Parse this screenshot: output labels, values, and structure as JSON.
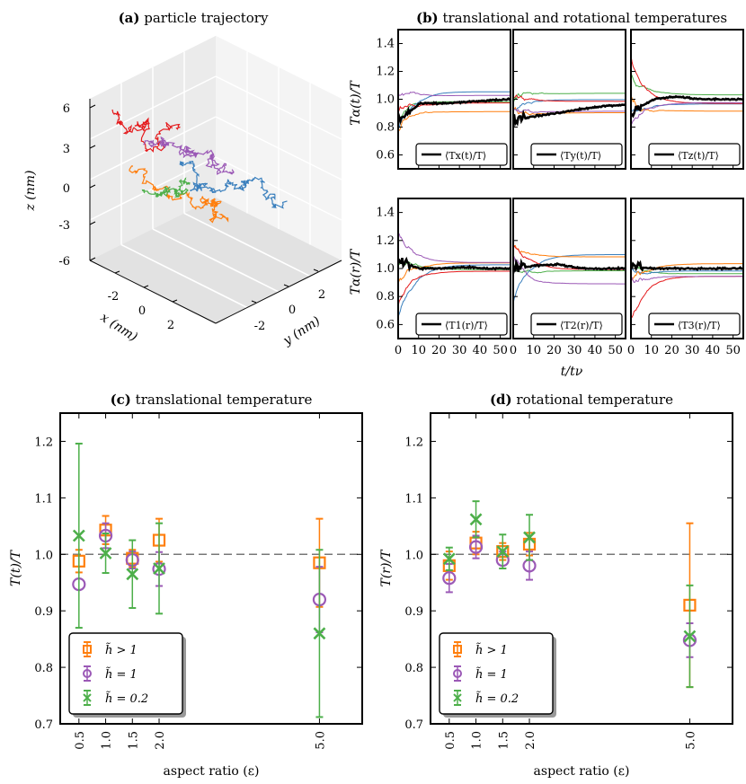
{
  "colors": {
    "orange": "#ff7f0e",
    "purple": "#9b59b6",
    "green": "#4daf4a",
    "blue": "#3a7fbd",
    "red": "#e41a1c",
    "black": "#000000",
    "dash": "#777777"
  },
  "panel_a": {
    "title_bold": "(a)",
    "title": "particle trajectory",
    "zlabel": "z (nm)",
    "xlabel": "x (nm)",
    "ylabel": "y (nm)",
    "z_ticks": [
      "6",
      "3",
      "0",
      "-3",
      "-6"
    ],
    "x_ticks": [
      "-2",
      "0",
      "2"
    ],
    "y_ticks": [
      "-2",
      "0",
      "2"
    ]
  },
  "panel_b": {
    "title_bold": "(b)",
    "title": "translational and rotational temperatures",
    "ylabel_top": "Tα(t)/T",
    "ylabel_bottom": "Tα(r)/T",
    "y_ticks": [
      "0.6",
      "0.8",
      "1.0",
      "1.2",
      "1.4"
    ],
    "x_ticks": [
      "0",
      "10",
      "20",
      "30",
      "40",
      "50"
    ],
    "xlabel": "t/tν",
    "legends": [
      "⟨Tx(t)/T⟩",
      "⟨Ty(t)/T⟩",
      "⟨Tz(t)/T⟩",
      "⟨T1(r)/T⟩",
      "⟨T2(r)/T⟩",
      "⟨T3(r)/T⟩"
    ]
  },
  "chart_data": [
    {
      "id": "c",
      "type": "scatter",
      "title_bold": "(c)",
      "title": "translational temperature",
      "xlabel": "aspect ratio (ε)",
      "ylabel": "T(t)/T",
      "ylim": [
        0.7,
        1.25
      ],
      "reference_line": 1.0,
      "x_tick_labels": [
        "0.5",
        "1.0",
        "1.5",
        "2.0",
        "5.0"
      ],
      "y_tick_labels": [
        "0.7",
        "0.8",
        "0.9",
        "1.0",
        "1.1",
        "1.2"
      ],
      "legend": [
        "h̃ > 1",
        "h̃ = 1",
        "h̃ = 0.2"
      ],
      "series": [
        {
          "name": "h̃ > 1",
          "marker": "square",
          "color": "orange",
          "x": [
            0.5,
            1.0,
            1.5,
            2.0,
            5.0
          ],
          "y": [
            0.988,
            1.043,
            0.993,
            1.025,
            0.985
          ],
          "err": [
            0.02,
            0.025,
            0.015,
            0.038,
            0.078
          ]
        },
        {
          "name": "h̃ = 1",
          "marker": "circle",
          "color": "purple",
          "x": [
            0.5,
            1.0,
            1.5,
            2.0,
            5.0
          ],
          "y": [
            0.947,
            1.033,
            0.99,
            0.974,
            0.92
          ],
          "err": [
            0.0,
            0.022,
            0.015,
            0.03,
            0.058
          ]
        },
        {
          "name": "h̃ = 0.2",
          "marker": "x",
          "color": "green",
          "x": [
            0.5,
            1.0,
            1.5,
            2.0,
            5.0
          ],
          "y": [
            1.033,
            1.002,
            0.965,
            0.975,
            0.86
          ],
          "err": [
            0.163,
            0.035,
            0.06,
            0.08,
            0.148
          ]
        }
      ]
    },
    {
      "id": "d",
      "type": "scatter",
      "title_bold": "(d)",
      "title": "rotational temperature",
      "xlabel": "aspect ratio (ε)",
      "ylabel": "T(r)/T",
      "ylim": [
        0.7,
        1.25
      ],
      "reference_line": 1.0,
      "x_tick_labels": [
        "0.5",
        "1.0",
        "1.5",
        "2.0",
        "5.0"
      ],
      "y_tick_labels": [
        "0.7",
        "0.8",
        "0.9",
        "1.0",
        "1.1",
        "1.2"
      ],
      "legend": [
        "h̃ > 1",
        "h̃ = 1",
        "h̃ = 0.2"
      ],
      "series": [
        {
          "name": "h̃ > 1",
          "marker": "square",
          "color": "orange",
          "x": [
            0.5,
            1.0,
            1.5,
            2.0,
            5.0
          ],
          "y": [
            0.98,
            1.02,
            1.005,
            1.018,
            0.91
          ],
          "err": [
            0.025,
            0.02,
            0.015,
            0.02,
            0.145
          ]
        },
        {
          "name": "h̃ = 1",
          "marker": "circle",
          "color": "purple",
          "x": [
            0.5,
            1.0,
            1.5,
            2.0,
            5.0
          ],
          "y": [
            0.958,
            1.013,
            0.99,
            0.98,
            0.848
          ],
          "err": [
            0.025,
            0.02,
            0.015,
            0.025,
            0.03
          ]
        },
        {
          "name": "h̃ = 0.2",
          "marker": "x",
          "color": "green",
          "x": [
            0.5,
            1.0,
            1.5,
            2.0,
            5.0
          ],
          "y": [
            0.992,
            1.062,
            1.005,
            1.03,
            0.855
          ],
          "err": [
            0.02,
            0.032,
            0.03,
            0.04,
            0.09
          ]
        }
      ]
    }
  ]
}
